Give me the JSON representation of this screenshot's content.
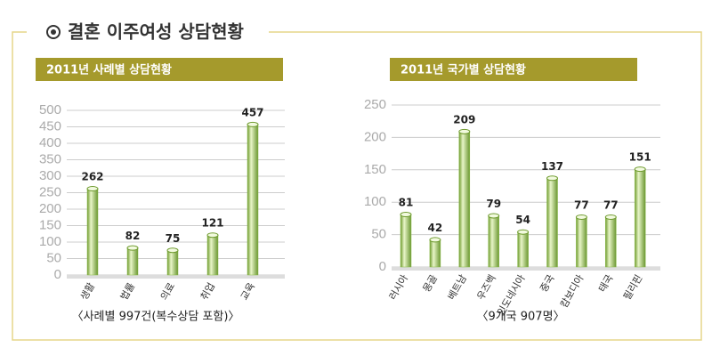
{
  "title": "결혼 이주여성 상담현황",
  "chart_data": [
    {
      "type": "bar",
      "title": "2011년 사례별 상담현황",
      "categories": [
        "생활",
        "법률",
        "의료",
        "취업",
        "교육"
      ],
      "values": [
        262,
        82,
        75,
        121,
        457
      ],
      "ylim": [
        0,
        520
      ],
      "yticks": [
        0,
        50,
        100,
        150,
        200,
        250,
        300,
        350,
        400,
        450,
        500
      ],
      "grid": true,
      "color": "#8bbd4a",
      "annotation": "〈사례별 997건(복수상담 포함)〉"
    },
    {
      "type": "bar",
      "title": "2011년 국가별 상담현황",
      "categories": [
        "러시아",
        "몽골",
        "베트남",
        "우즈벡",
        "인도네시아",
        "중국",
        "캄보디아",
        "태국",
        "필리핀"
      ],
      "values": [
        81,
        42,
        209,
        79,
        54,
        137,
        77,
        77,
        151
      ],
      "ylim": [
        0,
        250
      ],
      "yticks": [
        0,
        50,
        100,
        150,
        200,
        250
      ],
      "grid": true,
      "color": "#8bbd4a",
      "annotation": "〈9개국 907명〉"
    }
  ]
}
